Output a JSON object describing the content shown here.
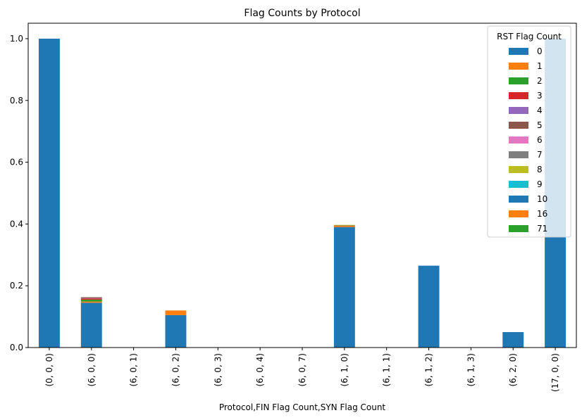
{
  "chart_data": {
    "type": "bar",
    "stacked": true,
    "title": "Flag Counts by Protocol",
    "xlabel": "Protocol,FIN Flag Count,SYN Flag Count",
    "ylabel": "",
    "ylim": [
      0,
      1.05
    ],
    "yticks": [
      0.0,
      0.2,
      0.4,
      0.6,
      0.8,
      1.0
    ],
    "ytick_labels": [
      "0.0",
      "0.2",
      "0.4",
      "0.6",
      "0.8",
      "1.0"
    ],
    "grid": false,
    "legend": {
      "title": "RST Flag Count",
      "placement": "top-right"
    },
    "categories": [
      "(0, 0, 0)",
      "(6, 0, 0)",
      "(6, 0, 1)",
      "(6, 0, 2)",
      "(6, 0, 3)",
      "(6, 0, 4)",
      "(6, 0, 7)",
      "(6, 1, 0)",
      "(6, 1, 1)",
      "(6, 1, 2)",
      "(6, 1, 3)",
      "(6, 2, 0)",
      "(17, 0, 0)"
    ],
    "series": [
      {
        "name": "0",
        "color": "#1f77b4",
        "values": [
          1.0,
          0.145,
          0,
          0.105,
          0,
          0,
          0,
          0.39,
          0,
          0.265,
          0,
          0.05,
          1.0
        ]
      },
      {
        "name": "1",
        "color": "#ff7f0e",
        "values": [
          0,
          0.004,
          0,
          0.015,
          0,
          0,
          0,
          0.003,
          0,
          0,
          0,
          0,
          0
        ]
      },
      {
        "name": "2",
        "color": "#2ca02c",
        "values": [
          0,
          0.006,
          0,
          0,
          0,
          0,
          0,
          0,
          0,
          0,
          0,
          0,
          0
        ]
      },
      {
        "name": "3",
        "color": "#d62728",
        "values": [
          0,
          0.004,
          0,
          0,
          0,
          0,
          0,
          0,
          0,
          0,
          0,
          0,
          0
        ]
      },
      {
        "name": "4",
        "color": "#9467bd",
        "values": [
          0,
          0.001,
          0,
          0,
          0,
          0,
          0,
          0,
          0,
          0,
          0,
          0,
          0
        ]
      },
      {
        "name": "5",
        "color": "#8c564b",
        "values": [
          0,
          0.003,
          0,
          0,
          0,
          0,
          0,
          0.002,
          0,
          0,
          0,
          0,
          0
        ]
      },
      {
        "name": "6",
        "color": "#e377c2",
        "values": [
          0,
          0,
          0,
          0,
          0,
          0,
          0,
          0,
          0,
          0,
          0,
          0,
          0
        ]
      },
      {
        "name": "7",
        "color": "#7f7f7f",
        "values": [
          0,
          0,
          0,
          0,
          0,
          0,
          0,
          0,
          0,
          0,
          0,
          0,
          0
        ]
      },
      {
        "name": "8",
        "color": "#bcbd22",
        "values": [
          0,
          0,
          0,
          0,
          0,
          0,
          0,
          0.002,
          0,
          0,
          0,
          0,
          0
        ]
      },
      {
        "name": "9",
        "color": "#17becf",
        "values": [
          0,
          0,
          0,
          0,
          0,
          0,
          0,
          0,
          0,
          0,
          0,
          0,
          0
        ]
      },
      {
        "name": "10",
        "color": "#1f77b4",
        "values": [
          0,
          0,
          0,
          0,
          0,
          0,
          0,
          0,
          0,
          0,
          0,
          0,
          0
        ]
      },
      {
        "name": "16",
        "color": "#ff7f0e",
        "values": [
          0,
          0,
          0,
          0,
          0,
          0,
          0,
          0,
          0,
          0,
          0,
          0,
          0
        ]
      },
      {
        "name": "71",
        "color": "#2ca02c",
        "values": [
          0,
          0,
          0,
          0,
          0,
          0,
          0,
          0,
          0,
          0,
          0,
          0,
          0
        ]
      }
    ]
  }
}
